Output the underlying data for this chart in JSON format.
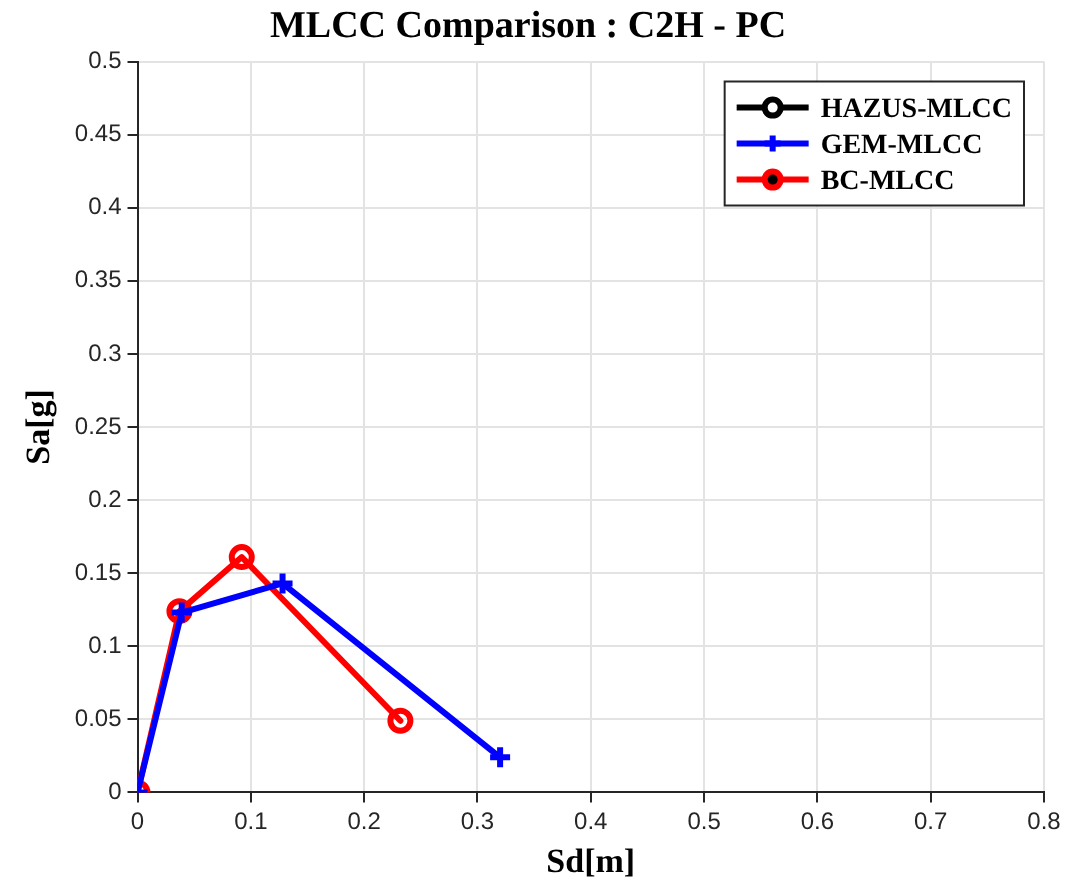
{
  "chart_data": {
    "type": "line",
    "title": "MLCC Comparison : C2H - PC",
    "xlabel": "Sd[m]",
    "ylabel": "Sa[g]",
    "xlim": [
      0,
      0.8
    ],
    "xticks": [
      0,
      0.1,
      0.2,
      0.3,
      0.4,
      0.5,
      0.6,
      0.7,
      0.8
    ],
    "ylim": [
      0,
      0.5
    ],
    "yticks": [
      0,
      0.05,
      0.1,
      0.15,
      0.2,
      0.25,
      0.3,
      0.35,
      0.4,
      0.45,
      0.5
    ],
    "grid": true,
    "legend": "top right",
    "line_style": "solid",
    "series": [
      {
        "name": "HAZUS-MLCC",
        "color": "#000000",
        "marker": "circle",
        "values": [
          null,
          null,
          null,
          null
        ]
      },
      {
        "name": "GEM-MLCC",
        "color": "#0000ff",
        "marker": "cross",
        "x": [
          0,
          0.039,
          0.128,
          0.32
        ],
        "values": [
          0,
          0.123,
          0.143,
          0.024
        ]
      },
      {
        "name": "BC-MLCC",
        "color": "#ff0000",
        "marker": "circle",
        "x": [
          0,
          0.037,
          0.092,
          0.232
        ],
        "values": [
          0,
          0.124,
          0.161,
          0.049
        ]
      }
    ]
  }
}
